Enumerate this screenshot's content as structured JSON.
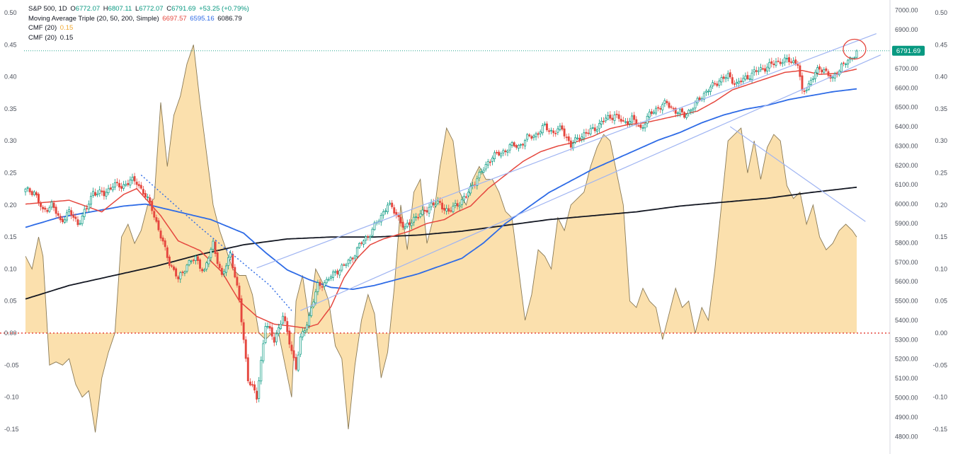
{
  "legend": {
    "symbol": "S&P 500, 1D",
    "open_label": "O",
    "open": "6772.07",
    "high_label": "H",
    "high": "6807.11",
    "low_label": "L",
    "low": "6772.07",
    "close_label": "C",
    "close": "6791.69",
    "change": "+53.25 (+0.79%)",
    "ma_label": "Moving Average Triple (20, 50, 200, Simple)",
    "ma20": "6697.57",
    "ma50": "6595.16",
    "ma200": "6086.79",
    "cmf1_label": "CMF (20)",
    "cmf1_value": "0.15",
    "cmf2_label": "CMF (20)",
    "cmf2_value": "0.15"
  },
  "price_tag": "6791.69",
  "colors": {
    "up": "#089981",
    "down": "#e5473e",
    "ma20": "#e5473e",
    "ma50": "#2e6be6",
    "ma200": "#131722",
    "cmf_fill": "#fbe0ad",
    "cmf_line": "#8a7a55",
    "trendline": "#9fb4f2",
    "price_tag": "#089981"
  },
  "chart_data": {
    "type": "candlestick",
    "price_axis": {
      "range": [
        4790,
        7010
      ],
      "ticks": [
        "7000.00",
        "6900.00",
        "6800.00",
        "6700.00",
        "6600.00",
        "6500.00",
        "6400.00",
        "6300.00",
        "6200.00",
        "6100.00",
        "6000.00",
        "5900.00",
        "5800.00",
        "5700.00",
        "5600.00",
        "5500.00",
        "5400.00",
        "5300.00",
        "5200.00",
        "5100.00",
        "5000.00",
        "4900.00",
        "4800.00"
      ]
    },
    "cmf_axis": {
      "range": [
        -0.155,
        0.5
      ],
      "left_ticks": [
        "0.50",
        "0.45",
        "0.40",
        "0.35",
        "0.30",
        "0.25",
        "0.20",
        "0.15",
        "0.10",
        "0.05",
        "0.00",
        "-0.05",
        "-0.10",
        "-0.15"
      ],
      "right_ticks": [
        "0.50",
        "0.45",
        "0.40",
        "0.35",
        "0.30",
        "0.25",
        "0.20",
        "0.15",
        "0.10",
        "0.05",
        "0.00",
        "-0.05",
        "-0.10",
        "-0.15"
      ]
    },
    "price_anchors": [
      [
        0,
        6070
      ],
      [
        4,
        6065
      ],
      [
        8,
        5960
      ],
      [
        12,
        6000
      ],
      [
        16,
        5910
      ],
      [
        20,
        5960
      ],
      [
        24,
        5900
      ],
      [
        28,
        5975
      ],
      [
        31,
        6065
      ],
      [
        36,
        6050
      ],
      [
        40,
        6100
      ],
      [
        44,
        6090
      ],
      [
        48,
        6120
      ],
      [
        51,
        6115
      ],
      [
        54,
        6060
      ],
      [
        58,
        5980
      ],
      [
        62,
        5830
      ],
      [
        66,
        5700
      ],
      [
        70,
        5610
      ],
      [
        74,
        5690
      ],
      [
        78,
        5720
      ],
      [
        82,
        5650
      ],
      [
        86,
        5800
      ],
      [
        90,
        5620
      ],
      [
        94,
        5750
      ],
      [
        98,
        5500
      ],
      [
        102,
        5100
      ],
      [
        106,
        5000
      ],
      [
        110,
        5380
      ],
      [
        114,
        5300
      ],
      [
        118,
        5420
      ],
      [
        122,
        5250
      ],
      [
        124,
        5150
      ],
      [
        126,
        5300
      ],
      [
        130,
        5420
      ],
      [
        134,
        5580
      ],
      [
        138,
        5600
      ],
      [
        142,
        5650
      ],
      [
        146,
        5680
      ],
      [
        150,
        5730
      ],
      [
        154,
        5800
      ],
      [
        158,
        5850
      ],
      [
        162,
        5920
      ],
      [
        166,
        6000
      ],
      [
        170,
        5950
      ],
      [
        174,
        5870
      ],
      [
        178,
        5930
      ],
      [
        182,
        5950
      ],
      [
        186,
        6000
      ],
      [
        190,
        6000
      ],
      [
        194,
        5960
      ],
      [
        198,
        6000
      ],
      [
        202,
        6040
      ],
      [
        206,
        6120
      ],
      [
        210,
        6180
      ],
      [
        214,
        6250
      ],
      [
        218,
        6260
      ],
      [
        222,
        6300
      ],
      [
        226,
        6300
      ],
      [
        230,
        6340
      ],
      [
        234,
        6360
      ],
      [
        238,
        6400
      ],
      [
        242,
        6370
      ],
      [
        246,
        6390
      ],
      [
        250,
        6300
      ],
      [
        254,
        6350
      ],
      [
        258,
        6370
      ],
      [
        262,
        6400
      ],
      [
        266,
        6440
      ],
      [
        270,
        6460
      ],
      [
        274,
        6420
      ],
      [
        278,
        6440
      ],
      [
        282,
        6390
      ],
      [
        286,
        6460
      ],
      [
        290,
        6500
      ],
      [
        294,
        6520
      ],
      [
        298,
        6480
      ],
      [
        302,
        6460
      ],
      [
        306,
        6500
      ],
      [
        310,
        6560
      ],
      [
        314,
        6600
      ],
      [
        318,
        6640
      ],
      [
        322,
        6660
      ],
      [
        326,
        6620
      ],
      [
        330,
        6650
      ],
      [
        334,
        6680
      ],
      [
        338,
        6700
      ],
      [
        342,
        6720
      ],
      [
        346,
        6740
      ],
      [
        350,
        6740
      ],
      [
        354,
        6730
      ],
      [
        356,
        6570
      ],
      [
        358,
        6600
      ],
      [
        362,
        6680
      ],
      [
        366,
        6700
      ],
      [
        370,
        6640
      ],
      [
        374,
        6720
      ],
      [
        378,
        6740
      ],
      [
        381,
        6792
      ]
    ],
    "ma20_anchors": [
      [
        0,
        6000
      ],
      [
        20,
        6020
      ],
      [
        35,
        5960
      ],
      [
        45,
        6050
      ],
      [
        51,
        6080
      ],
      [
        62,
        5940
      ],
      [
        70,
        5810
      ],
      [
        80,
        5760
      ],
      [
        90,
        5650
      ],
      [
        98,
        5500
      ],
      [
        106,
        5420
      ],
      [
        114,
        5380
      ],
      [
        122,
        5370
      ],
      [
        128,
        5360
      ],
      [
        134,
        5380
      ],
      [
        140,
        5470
      ],
      [
        146,
        5620
      ],
      [
        152,
        5720
      ],
      [
        158,
        5790
      ],
      [
        164,
        5820
      ],
      [
        170,
        5840
      ],
      [
        176,
        5860
      ],
      [
        184,
        5900
      ],
      [
        192,
        5920
      ],
      [
        198,
        5960
      ],
      [
        204,
        5990
      ],
      [
        212,
        6080
      ],
      [
        220,
        6150
      ],
      [
        228,
        6220
      ],
      [
        236,
        6270
      ],
      [
        244,
        6300
      ],
      [
        252,
        6320
      ],
      [
        260,
        6350
      ],
      [
        268,
        6390
      ],
      [
        276,
        6410
      ],
      [
        284,
        6420
      ],
      [
        292,
        6440
      ],
      [
        300,
        6460
      ],
      [
        308,
        6480
      ],
      [
        316,
        6530
      ],
      [
        324,
        6590
      ],
      [
        332,
        6620
      ],
      [
        340,
        6650
      ],
      [
        348,
        6680
      ],
      [
        356,
        6690
      ],
      [
        364,
        6670
      ],
      [
        372,
        6675
      ],
      [
        381,
        6697
      ]
    ],
    "ma50_anchors": [
      [
        0,
        5880
      ],
      [
        15,
        5930
      ],
      [
        30,
        5960
      ],
      [
        45,
        5990
      ],
      [
        55,
        6000
      ],
      [
        70,
        5960
      ],
      [
        85,
        5920
      ],
      [
        100,
        5850
      ],
      [
        110,
        5750
      ],
      [
        120,
        5660
      ],
      [
        130,
        5610
      ],
      [
        140,
        5570
      ],
      [
        150,
        5560
      ],
      [
        160,
        5580
      ],
      [
        170,
        5610
      ],
      [
        180,
        5640
      ],
      [
        190,
        5680
      ],
      [
        200,
        5720
      ],
      [
        210,
        5800
      ],
      [
        220,
        5900
      ],
      [
        230,
        5980
      ],
      [
        240,
        6060
      ],
      [
        250,
        6120
      ],
      [
        260,
        6180
      ],
      [
        270,
        6230
      ],
      [
        280,
        6280
      ],
      [
        290,
        6330
      ],
      [
        300,
        6370
      ],
      [
        310,
        6420
      ],
      [
        320,
        6460
      ],
      [
        330,
        6490
      ],
      [
        340,
        6510
      ],
      [
        350,
        6540
      ],
      [
        360,
        6560
      ],
      [
        370,
        6580
      ],
      [
        381,
        6595
      ]
    ],
    "ma200_anchors": [
      [
        0,
        5510
      ],
      [
        20,
        5580
      ],
      [
        40,
        5630
      ],
      [
        60,
        5680
      ],
      [
        80,
        5740
      ],
      [
        100,
        5790
      ],
      [
        120,
        5820
      ],
      [
        140,
        5830
      ],
      [
        160,
        5830
      ],
      [
        180,
        5840
      ],
      [
        200,
        5860
      ],
      [
        220,
        5890
      ],
      [
        240,
        5920
      ],
      [
        260,
        5940
      ],
      [
        280,
        5960
      ],
      [
        300,
        5990
      ],
      [
        320,
        6010
      ],
      [
        340,
        6030
      ],
      [
        360,
        6060
      ],
      [
        381,
        6087
      ]
    ],
    "cmf_anchors": [
      [
        0,
        0.12
      ],
      [
        3,
        0.1
      ],
      [
        6,
        0.15
      ],
      [
        8,
        0.12
      ],
      [
        11,
        -0.05
      ],
      [
        14,
        -0.045
      ],
      [
        17,
        -0.05
      ],
      [
        20,
        -0.04
      ],
      [
        23,
        -0.08
      ],
      [
        26,
        -0.1
      ],
      [
        29,
        -0.09
      ],
      [
        32,
        -0.155
      ],
      [
        35,
        -0.07
      ],
      [
        38,
        -0.03
      ],
      [
        41,
        0.0
      ],
      [
        44,
        0.15
      ],
      [
        47,
        0.17
      ],
      [
        50,
        0.14
      ],
      [
        53,
        0.16
      ],
      [
        56,
        0.2
      ],
      [
        59,
        0.21
      ],
      [
        62,
        0.36
      ],
      [
        65,
        0.26
      ],
      [
        68,
        0.34
      ],
      [
        71,
        0.37
      ],
      [
        74,
        0.42
      ],
      [
        77,
        0.45
      ],
      [
        80,
        0.36
      ],
      [
        83,
        0.28
      ],
      [
        86,
        0.2
      ],
      [
        89,
        0.16
      ],
      [
        92,
        0.13
      ],
      [
        95,
        0.1
      ],
      [
        98,
        0.09
      ],
      [
        101,
        0.09
      ],
      [
        104,
        0.06
      ],
      [
        107,
        0.0
      ],
      [
        110,
        -0.01
      ],
      [
        113,
        0.0
      ],
      [
        116,
        0.0
      ],
      [
        119,
        -0.05
      ],
      [
        122,
        -0.1
      ],
      [
        124,
        0.05
      ],
      [
        127,
        0.09
      ],
      [
        130,
        0.02
      ],
      [
        133,
        0.1
      ],
      [
        136,
        0.08
      ],
      [
        139,
        0.05
      ],
      [
        142,
        -0.02
      ],
      [
        145,
        -0.04
      ],
      [
        148,
        -0.15
      ],
      [
        151,
        -0.05
      ],
      [
        154,
        0.02
      ],
      [
        157,
        0.06
      ],
      [
        160,
        0.03
      ],
      [
        163,
        -0.07
      ],
      [
        166,
        -0.03
      ],
      [
        169,
        0.07
      ],
      [
        172,
        0.2
      ],
      [
        175,
        0.13
      ],
      [
        178,
        0.22
      ],
      [
        181,
        0.24
      ],
      [
        184,
        0.14
      ],
      [
        187,
        0.18
      ],
      [
        190,
        0.26
      ],
      [
        193,
        0.32
      ],
      [
        196,
        0.3
      ],
      [
        199,
        0.22
      ],
      [
        202,
        0.2
      ],
      [
        205,
        0.24
      ],
      [
        208,
        0.26
      ],
      [
        211,
        0.24
      ],
      [
        214,
        0.24
      ],
      [
        217,
        0.22
      ],
      [
        220,
        0.19
      ],
      [
        223,
        0.18
      ],
      [
        226,
        0.1
      ],
      [
        229,
        0.02
      ],
      [
        232,
        0.06
      ],
      [
        235,
        0.13
      ],
      [
        238,
        0.12
      ],
      [
        241,
        0.1
      ],
      [
        244,
        0.18
      ],
      [
        247,
        0.16
      ],
      [
        250,
        0.2
      ],
      [
        253,
        0.21
      ],
      [
        256,
        0.22
      ],
      [
        259,
        0.26
      ],
      [
        262,
        0.29
      ],
      [
        265,
        0.31
      ],
      [
        268,
        0.3
      ],
      [
        271,
        0.25
      ],
      [
        274,
        0.2
      ],
      [
        277,
        0.05
      ],
      [
        280,
        0.04
      ],
      [
        283,
        0.07
      ],
      [
        286,
        0.05
      ],
      [
        289,
        0.04
      ],
      [
        292,
        -0.01
      ],
      [
        295,
        0.03
      ],
      [
        298,
        0.07
      ],
      [
        301,
        0.04
      ],
      [
        304,
        0.05
      ],
      [
        307,
        0.0
      ],
      [
        310,
        0.04
      ],
      [
        313,
        0.02
      ],
      [
        316,
        0.1
      ],
      [
        319,
        0.2
      ],
      [
        322,
        0.3
      ],
      [
        325,
        0.31
      ],
      [
        328,
        0.32
      ],
      [
        331,
        0.25
      ],
      [
        334,
        0.3
      ],
      [
        337,
        0.24
      ],
      [
        340,
        0.29
      ],
      [
        343,
        0.31
      ],
      [
        346,
        0.3
      ],
      [
        349,
        0.23
      ],
      [
        352,
        0.21
      ],
      [
        355,
        0.22
      ],
      [
        358,
        0.17
      ],
      [
        361,
        0.2
      ],
      [
        364,
        0.15
      ],
      [
        367,
        0.13
      ],
      [
        370,
        0.14
      ],
      [
        373,
        0.16
      ],
      [
        376,
        0.17
      ],
      [
        379,
        0.16
      ],
      [
        381,
        0.15
      ]
    ],
    "dotted_line_anchors": [
      [
        53,
        6150
      ],
      [
        80,
        5880
      ],
      [
        112,
        5580
      ],
      [
        122,
        5450
      ]
    ],
    "channel_upper": [
      [
        106,
        5670
      ],
      [
        390,
        6880
      ]
    ],
    "channel_lower": [
      [
        126,
        5450
      ],
      [
        392,
        6770
      ]
    ],
    "falling_line": [
      [
        323,
        6400
      ],
      [
        385,
        5910
      ]
    ],
    "circle_marker": [
      380,
      6800
    ]
  }
}
